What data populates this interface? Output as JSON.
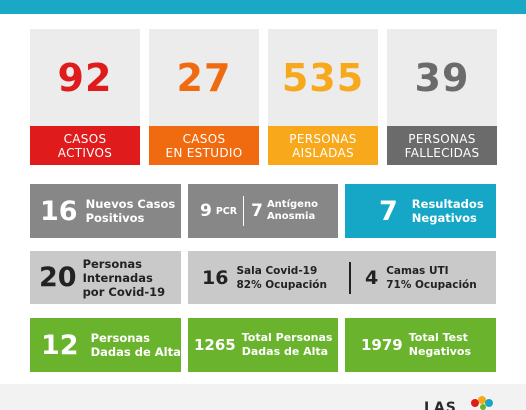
{
  "colors": {
    "header": "#19a9c7",
    "red": "#e01b1b",
    "orange": "#f06a0f",
    "yellow": "#f7a81b",
    "gray": "#6b6b6b",
    "cyan": "#17a7c6",
    "green": "#6ab42d"
  },
  "stats": [
    {
      "value": "92",
      "line1": "CASOS",
      "line2": "ACTIVOS"
    },
    {
      "value": "27",
      "line1": "CASOS",
      "line2": "EN ESTUDIO"
    },
    {
      "value": "535",
      "line1": "PERSONAS",
      "line2": "AISLADAS"
    },
    {
      "value": "39",
      "line1": "PERSONAS",
      "line2": "FALLECIDAS"
    }
  ],
  "row1": {
    "nuevos": {
      "value": "16",
      "line1": "Nuevos Casos",
      "line2": "Positivos"
    },
    "tests": {
      "pcr_value": "9",
      "pcr_label": "PCR",
      "antigeno_value": "7",
      "antigeno_line1": "Antígeno",
      "antigeno_line2": "Anosmia"
    },
    "negativos": {
      "value": "7",
      "line1": "Resultados",
      "line2": "Negativos"
    }
  },
  "row2": {
    "internadas": {
      "value": "20",
      "line1": "Personas",
      "line2": "Internadas",
      "line3": "por Covid-19"
    },
    "sala": {
      "value": "16",
      "line1": "Sala Covid-19",
      "line2": "82% Ocupación"
    },
    "uti": {
      "value": "4",
      "line1": "Camas UTI",
      "line2": "71% Ocupación"
    }
  },
  "row3": {
    "alta": {
      "value": "12",
      "line1": "Personas",
      "line2": "Dadas de Alta"
    },
    "total_alta": {
      "value": "1265",
      "line1": "Total Personas",
      "line2": "Dadas de Alta"
    },
    "total_neg": {
      "value": "1979",
      "line1": "Total Test",
      "line2": "Negativos"
    }
  },
  "footer": {
    "logo_text": "LAS"
  }
}
